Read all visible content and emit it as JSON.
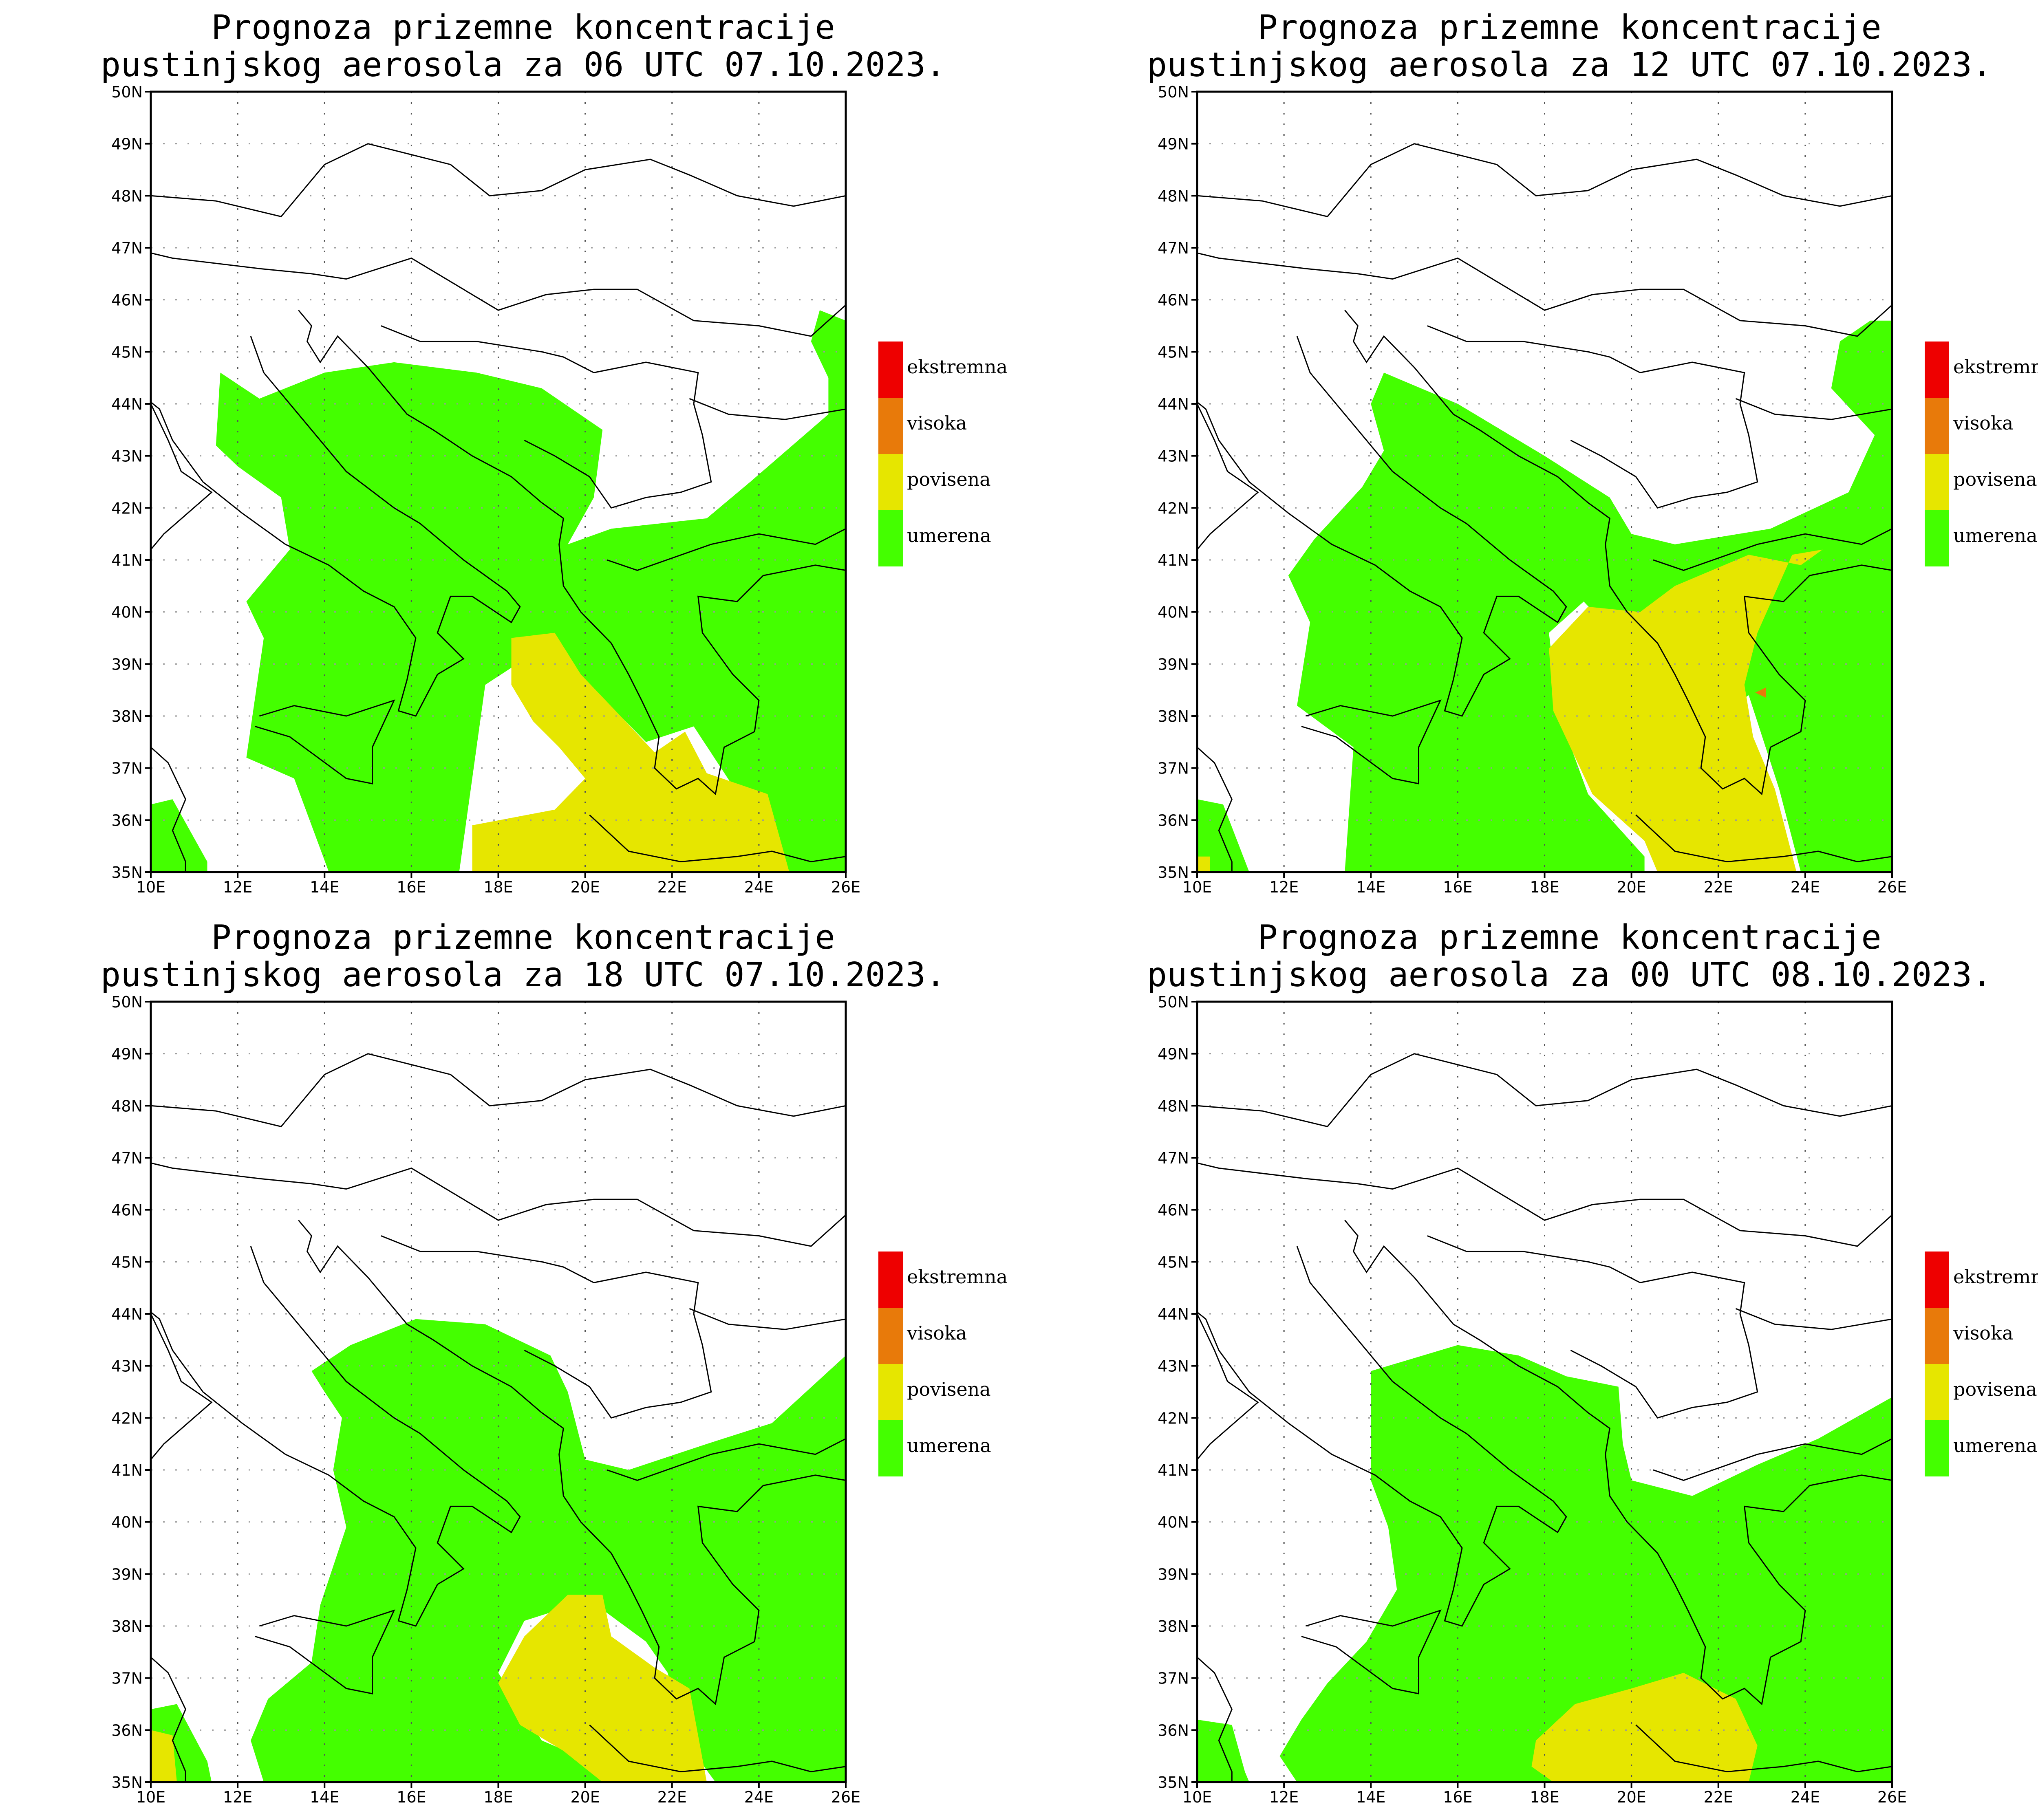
{
  "panels": [
    {
      "title_line1": "Prognoza prizemne koncentracije",
      "title_line2": "pustinjskog aerosola za 06 UTC 07.10.2023."
    },
    {
      "title_line1": "Prognoza prizemne koncentracije",
      "title_line2": "pustinjskog aerosola za 12 UTC 07.10.2023."
    },
    {
      "title_line1": "Prognoza prizemne koncentracije",
      "title_line2": "pustinjskog aerosola za 18 UTC 07.10.2023."
    },
    {
      "title_line1": "Prognoza prizemne koncentracije",
      "title_line2": "pustinjskog aerosola za 00 UTC 08.10.2023."
    }
  ],
  "axes": {
    "lat_labels": [
      "50N",
      "49N",
      "48N",
      "47N",
      "46N",
      "45N",
      "44N",
      "43N",
      "42N",
      "41N",
      "40N",
      "39N",
      "38N",
      "37N",
      "36N",
      "35N"
    ],
    "lon_labels": [
      "10E",
      "12E",
      "14E",
      "16E",
      "18E",
      "20E",
      "22E",
      "24E",
      "26E"
    ]
  },
  "legend": [
    {
      "label": "ekstremna",
      "color": "#ee0000"
    },
    {
      "label": "visoka",
      "color": "#e87a0a"
    },
    {
      "label": "povisena",
      "color": "#e6e600"
    },
    {
      "label": "umerena",
      "color": "#44ff00"
    }
  ]
}
